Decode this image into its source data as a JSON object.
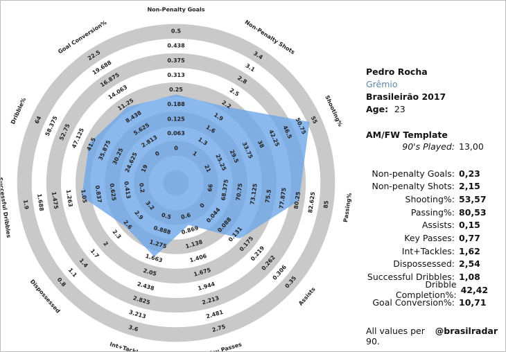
{
  "chart_data": {
    "type": "radar",
    "color": "#6fa8e8",
    "ring_color": "#c9c9c9",
    "categories": [
      "Non-Penalty Goals",
      "Non-Penalty Shots",
      "Shooting%",
      "Passing%",
      "Assists",
      "Key Passes",
      "Int+Tackles",
      "Dispossessed",
      "Successful Dribbles",
      "Dribble%",
      "Goal Conversion%"
    ],
    "values": [
      0.23,
      2.15,
      53.57,
      80.53,
      0.15,
      0.77,
      1.62,
      2.54,
      1.08,
      42.42,
      10.71
    ],
    "value_labels": [
      "0,23",
      "2,15",
      "53,57",
      "80,53",
      "0,15",
      "0,77",
      "1,62",
      "2,54",
      "1,08",
      "42,42",
      "10,71"
    ],
    "axis_ticks": [
      [
        0,
        0.063,
        0.125,
        0.188,
        0.25,
        0.313,
        0.375,
        0.438,
        0.5
      ],
      [
        1,
        1.3,
        1.6,
        1.9,
        2.2,
        2.5,
        2.8,
        3.1,
        3.4
      ],
      [
        21,
        25.25,
        29.5,
        33.75,
        38,
        42.25,
        46.5,
        50.75,
        55
      ],
      [
        66,
        68.375,
        70.75,
        73.125,
        75.5,
        77.875,
        80.25,
        82.625,
        85
      ],
      [
        0,
        0.044,
        0.088,
        0.131,
        0.175,
        0.219,
        0.262,
        0.306,
        0.35
      ],
      [
        0.6,
        0.869,
        1.138,
        1.406,
        1.675,
        1.944,
        2.213,
        2.481,
        2.75
      ],
      [
        0.5,
        0.888,
        1.275,
        1.663,
        2.05,
        2.438,
        2.825,
        3.213,
        3.6
      ],
      [
        3.2,
        2.9,
        2.6,
        2.3,
        2,
        1.7,
        1.4,
        1.1,
        0.8
      ],
      [
        0.2,
        0.413,
        0.625,
        0.837,
        1.05,
        1.263,
        1.475,
        1.688,
        1.9
      ],
      [
        19,
        24.625,
        30.25,
        35.875,
        41.5,
        47.125,
        52.75,
        58.375,
        64
      ],
      [
        0,
        2.813,
        5.625,
        8.438,
        11.25,
        14.063,
        16.875,
        19.688,
        22.5
      ]
    ]
  },
  "sidebar": {
    "name": "Pedro Rocha",
    "team": "Grêmio",
    "league": "Brasileirão 2017",
    "age_label": "Age:",
    "age": 23,
    "template": "AM/FW Template",
    "played_label": "90's Played:",
    "played": "13,00",
    "stat_labels": [
      "Non-penalty Goals:",
      "Non-penalty Shots:",
      "Shooting%:",
      "Passing%:",
      "Assists:",
      "Key Passes:",
      "Int+Tackles:",
      "Dispossessed:",
      "Successful Dribbles:",
      "Dribble Completion%:",
      "Goal Conversion%:"
    ],
    "footer": "All values per 90.",
    "handle": "@brasilradar"
  }
}
